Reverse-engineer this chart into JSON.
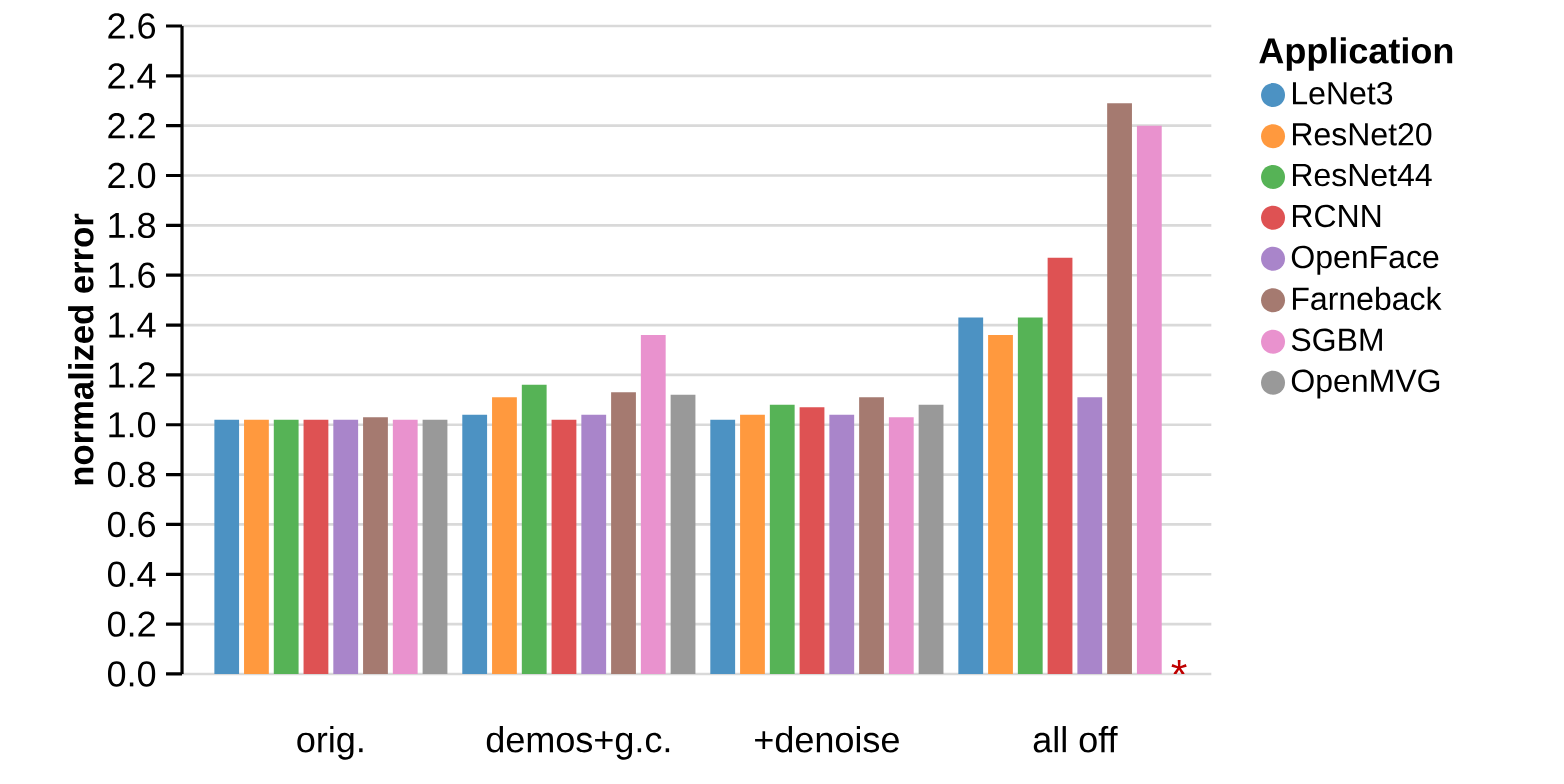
{
  "chart_data": {
    "type": "bar",
    "ylabel": "normalized error",
    "legend_title": "Application",
    "categories": [
      "orig.",
      "demos+g.c.",
      "+denoise",
      "all off"
    ],
    "series": [
      {
        "name": "LeNet3",
        "color": "#4c92c3",
        "values": [
          1.02,
          1.04,
          1.02,
          1.43
        ]
      },
      {
        "name": "ResNet20",
        "color": "#ff993e",
        "values": [
          1.02,
          1.11,
          1.04,
          1.36
        ]
      },
      {
        "name": "ResNet44",
        "color": "#56b356",
        "values": [
          1.02,
          1.16,
          1.08,
          1.43
        ]
      },
      {
        "name": "RCNN",
        "color": "#de5253",
        "values": [
          1.02,
          1.02,
          1.07,
          1.67
        ]
      },
      {
        "name": "OpenFace",
        "color": "#a985ca",
        "values": [
          1.02,
          1.04,
          1.04,
          1.11
        ]
      },
      {
        "name": "Farneback",
        "color": "#a57a70",
        "values": [
          1.03,
          1.13,
          1.11,
          2.29
        ]
      },
      {
        "name": "SGBM",
        "color": "#e992ce",
        "values": [
          1.02,
          1.36,
          1.03,
          2.2
        ]
      },
      {
        "name": "OpenMVG",
        "color": "#999999",
        "values": [
          1.02,
          1.12,
          1.08,
          null
        ]
      }
    ],
    "ylim": [
      0,
      2.6
    ],
    "yticks": [
      {
        "value": 0,
        "label": "0.0"
      },
      0.2,
      0.4,
      0.6,
      0.8,
      {
        "value": 1,
        "label": "1.0"
      },
      1.2,
      1.4,
      1.6,
      1.8,
      {
        "value": 2,
        "label": "2.0"
      },
      2.2,
      2.4,
      2.6
    ],
    "grid": "y",
    "legend": "right",
    "annotations": [
      {
        "text": "*",
        "x": "all off",
        "y": 0
      }
    ]
  }
}
